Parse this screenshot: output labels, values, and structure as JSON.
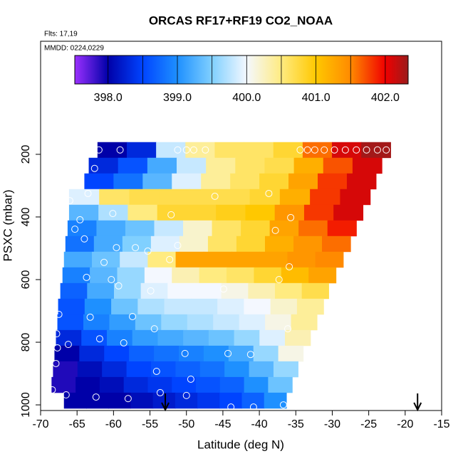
{
  "chart_data": {
    "type": "heatmap",
    "title": "ORCAS RF17+RF19 CO2_NOAA",
    "subtitle": "Flts: 17,19",
    "annotation": "MMDD: 0224,0229",
    "x_label": "Latitude (deg N)",
    "y_label": "PSXC (mbar)",
    "xlim": [
      -70,
      -15
    ],
    "xticks": [
      -70,
      -65,
      -60,
      -55,
      -50,
      -45,
      -40,
      -35,
      -30,
      -25,
      -20,
      -15
    ],
    "ylim": [
      1018,
      -161
    ],
    "yticks": [
      200,
      400,
      600,
      800,
      1000
    ],
    "colorlim": [
      397.52,
      402.33
    ],
    "colorticks": [
      {
        "value": 398,
        "label": "398.0"
      },
      {
        "value": 399,
        "label": "399.0"
      },
      {
        "value": 400,
        "label": "400.0"
      },
      {
        "value": 401,
        "label": "401.0"
      },
      {
        "value": 402,
        "label": "402.0"
      }
    ],
    "colorscale": [
      {
        "value": 397.52,
        "color": "#9b30ff"
      },
      {
        "value": 398.0,
        "color": "#0000a8"
      },
      {
        "value": 398.5,
        "color": "#0044ff"
      },
      {
        "value": 399.0,
        "color": "#1e90ff"
      },
      {
        "value": 399.5,
        "color": "#80d0ff"
      },
      {
        "value": 400.0,
        "color": "#f4f8ff"
      },
      {
        "value": 400.5,
        "color": "#ffeb80"
      },
      {
        "value": 401.0,
        "color": "#ffc800"
      },
      {
        "value": 401.5,
        "color": "#ff8a00"
      },
      {
        "value": 402.0,
        "color": "#f00000"
      },
      {
        "value": 402.33,
        "color": "#9b1c1c"
      }
    ],
    "rows": [
      {
        "p_range": [
          161,
          211
        ],
        "lat_range": [
          -62.2,
          -22.0
        ],
        "values": [
          398.0,
          398.3,
          399.8,
          400.4,
          400.6,
          400.6,
          400.8,
          401.6,
          402.1,
          402.3
        ]
      },
      {
        "p_range": [
          211,
          261
        ],
        "lat_range": [
          -63.4,
          -23.2
        ],
        "values": [
          398.3,
          398.6,
          399.2,
          399.8,
          400.4,
          400.6,
          400.7,
          401.2,
          401.7,
          402.1
        ]
      },
      {
        "p_range": [
          261,
          311
        ],
        "lat_range": [
          -64.0,
          -24.0
        ],
        "values": [
          398.5,
          398.8,
          399.3,
          399.9,
          400.4,
          400.6,
          400.8,
          401.3,
          401.8,
          402.1
        ]
      },
      {
        "p_range": [
          311,
          361
        ],
        "lat_range": [
          -66.1,
          -24.8
        ],
        "values": [
          399.9,
          400.6,
          400.7,
          400.7,
          400.7,
          400.7,
          400.8,
          401.2,
          401.8,
          402.1
        ]
      },
      {
        "p_range": [
          361,
          411
        ],
        "lat_range": [
          -66.1,
          -25.8
        ],
        "values": [
          399.3,
          399.7,
          400.5,
          400.8,
          400.8,
          400.9,
          401.0,
          401.4,
          401.8,
          402.1
        ]
      },
      {
        "p_range": [
          411,
          461
        ],
        "lat_range": [
          -66.3,
          -26.7
        ],
        "values": [
          398.9,
          399.2,
          399.4,
          399.8,
          400.2,
          400.6,
          400.8,
          401.3,
          401.6,
          401.9
        ]
      },
      {
        "p_range": [
          461,
          511
        ],
        "lat_range": [
          -66.6,
          -27.5
        ],
        "values": [
          398.8,
          399.2,
          399.5,
          399.9,
          400.2,
          400.6,
          400.8,
          401.2,
          401.4,
          401.6
        ]
      },
      {
        "p_range": [
          511,
          561
        ],
        "lat_range": [
          -66.8,
          -28.5
        ],
        "values": [
          399.2,
          399.4,
          399.8,
          400.5,
          401.3,
          401.3,
          401.3,
          401.3,
          401.4,
          401.5
        ]
      },
      {
        "p_range": [
          561,
          611
        ],
        "lat_range": [
          -67.0,
          -29.5
        ],
        "values": [
          398.9,
          399.3,
          399.6,
          400.0,
          400.3,
          400.5,
          400.6,
          400.8,
          401.1,
          401.3
        ]
      },
      {
        "p_range": [
          611,
          661
        ],
        "lat_range": [
          -67.3,
          -30.5
        ],
        "values": [
          398.7,
          399.2,
          399.6,
          399.9,
          400.0,
          400.0,
          400.1,
          400.3,
          400.5,
          400.7
        ]
      },
      {
        "p_range": [
          661,
          711
        ],
        "lat_range": [
          -67.6,
          -31.2
        ],
        "values": [
          398.6,
          399.0,
          399.4,
          399.7,
          399.8,
          399.8,
          399.9,
          400.0,
          400.2,
          400.4
        ]
      },
      {
        "p_range": [
          711,
          761
        ],
        "lat_range": [
          -67.7,
          -32.1
        ],
        "values": [
          398.6,
          398.9,
          399.1,
          399.4,
          399.6,
          399.7,
          399.8,
          399.9,
          400.1,
          400.4
        ]
      },
      {
        "p_range": [
          761,
          811
        ],
        "lat_range": [
          -67.9,
          -33.0
        ],
        "values": [
          398.3,
          398.6,
          398.9,
          399.1,
          399.2,
          399.3,
          399.4,
          399.6,
          399.9,
          400.3
        ]
      },
      {
        "p_range": [
          811,
          861
        ],
        "lat_range": [
          -68.1,
          -34.0
        ],
        "values": [
          398.0,
          398.3,
          398.5,
          398.7,
          398.8,
          398.9,
          399.0,
          399.2,
          399.6,
          400.1
        ]
      },
      {
        "p_range": [
          861,
          911
        ],
        "lat_range": [
          -68.3,
          -34.7
        ],
        "values": [
          397.9,
          398.1,
          398.3,
          398.5,
          398.6,
          398.7,
          398.8,
          399.0,
          399.3,
          399.6
        ]
      },
      {
        "p_range": [
          911,
          961
        ],
        "lat_range": [
          -68.5,
          -35.5
        ],
        "values": [
          397.9,
          398.0,
          398.1,
          398.3,
          398.4,
          398.5,
          398.6,
          398.7,
          399.0,
          399.4
        ]
      },
      {
        "p_range": [
          961,
          1011
        ],
        "lat_range": [
          -66.8,
          -36.3
        ],
        "values": [
          398.0,
          398.0,
          398.0,
          398.1,
          398.2,
          398.3,
          398.4,
          398.5,
          398.7,
          399.0
        ]
      }
    ],
    "points": {
      "x": [
        -62.0,
        -59.1,
        -51.2,
        -50.0,
        -49.0,
        -47.4,
        -34.4,
        -33.4,
        -32.4,
        -31.1,
        -29.7,
        -28.2,
        -26.7,
        -25.3,
        -23.8,
        -22.6,
        -62.6,
        -63.5,
        -64.6,
        -65.3,
        -66.0,
        -60.1,
        -52.1,
        -46.1,
        -38.7,
        -37.8,
        -35.7,
        -64.0,
        -59.6,
        -57.0,
        -55.3,
        -51.2,
        -61.3,
        -52.3,
        -35.9,
        -63.7,
        -60.3,
        -59.3,
        -54.9,
        -44.9,
        -37.3,
        -67.5,
        -63.2,
        -57.4,
        -67.8,
        -61.9,
        -58.6,
        -54.4,
        -36.1,
        -67.7,
        -66.2,
        -50.2,
        -44.3,
        -41.2,
        -67.9,
        -54.1,
        -49.4,
        -68.4,
        -66.5,
        -53.6,
        -62.4,
        -58.0,
        -50.0,
        -43.9,
        -40.8,
        -36.7
      ],
      "y": [
        186,
        186,
        186,
        186,
        186,
        186,
        186,
        186,
        186,
        186,
        186,
        186,
        186,
        186,
        186,
        186,
        245,
        325,
        409,
        439,
        348,
        389,
        393,
        334,
        325,
        443,
        402,
        470,
        498,
        498,
        509,
        491,
        545,
        536,
        559,
        593,
        600,
        620,
        636,
        630,
        600,
        711,
        720,
        718,
        773,
        789,
        802,
        757,
        757,
        818,
        807,
        836,
        836,
        839,
        868,
        893,
        918,
        952,
        968,
        961,
        975,
        980,
        970,
        1007,
        1007,
        1000
      ]
    },
    "arrows": [
      -52.9,
      -18.3
    ]
  }
}
